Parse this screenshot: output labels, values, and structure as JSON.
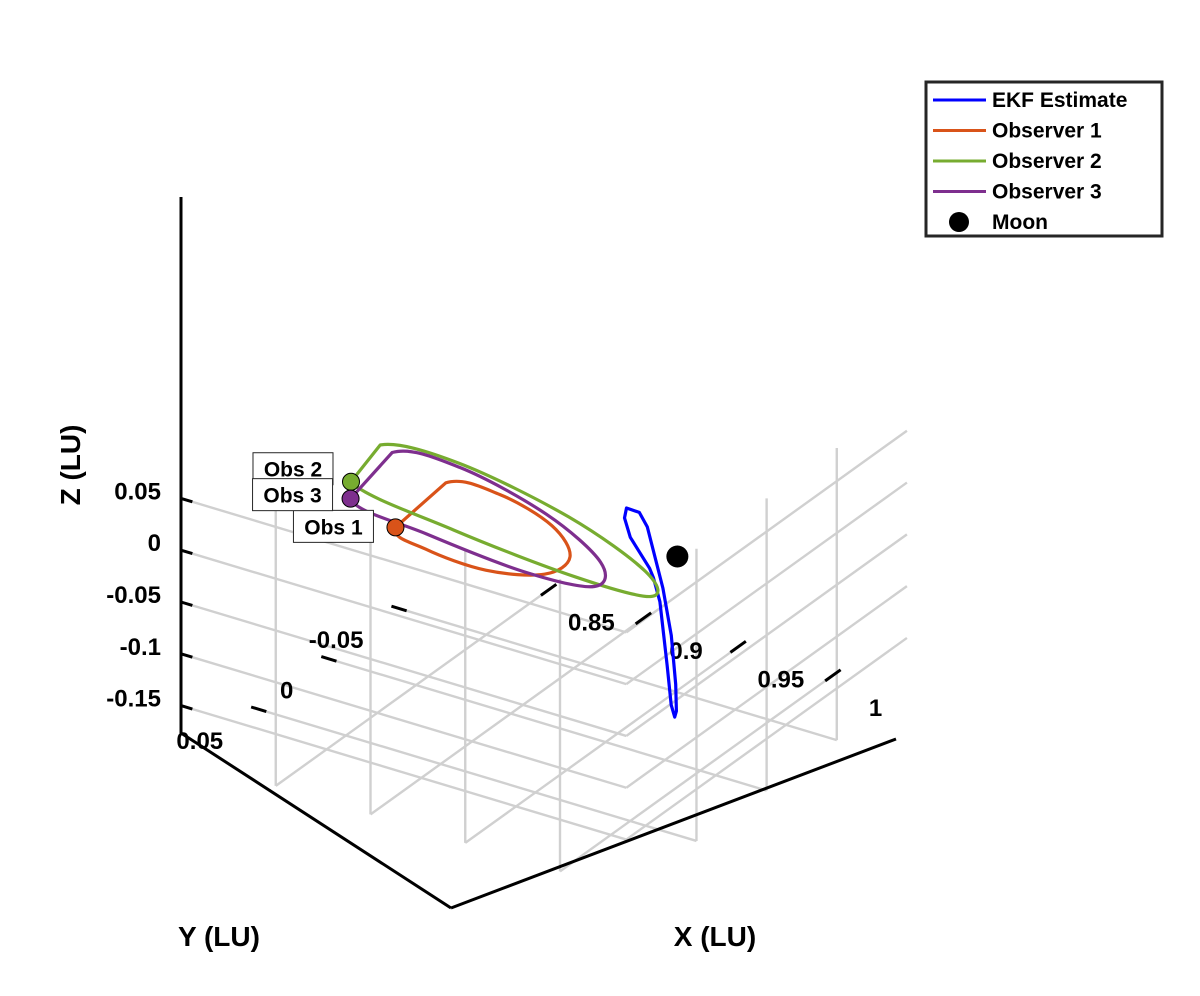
{
  "chart_data": {
    "type": "line3d",
    "grid": true,
    "legend_position": "top-right",
    "axes": {
      "x": {
        "label": "X (LU)",
        "ticks": [
          0.85,
          0.9,
          0.95,
          1
        ],
        "tick_labels": [
          "0.85",
          "0.9",
          "0.95",
          "1"
        ]
      },
      "y": {
        "label": "Y (LU)",
        "ticks": [
          0.05,
          0,
          -0.05
        ],
        "tick_labels": [
          "0.05",
          "0",
          "-0.05"
        ]
      },
      "z": {
        "label": "Z (LU)",
        "ticks": [
          0.05,
          0,
          -0.05,
          -0.1,
          -0.15
        ],
        "tick_labels": [
          "0.05",
          "0",
          "-0.05",
          "-0.1",
          "-0.15"
        ]
      }
    },
    "series": [
      {
        "name": "EKF Estimate",
        "color": "#0000ff",
        "type": "trajectory",
        "x": [
          0.9757,
          0.9788,
          0.9818,
          0.985,
          0.9865,
          0.987,
          0.9865,
          0.985,
          0.9818,
          0.9762,
          0.9653,
          0.9616,
          0.9573,
          0.9588,
          0.9635,
          0.9757
        ],
        "y": [
          0.0033,
          0.0048,
          0.0042,
          0.0034,
          0.0025,
          0.0007,
          -0.0012,
          -0.0027,
          -0.0039,
          -0.0055,
          -0.0091,
          -0.0084,
          -0.0051,
          -0.0016,
          0.0006,
          0.0033
        ],
        "z": [
          -0.0149,
          -0.0208,
          -0.0429,
          -0.103,
          -0.1416,
          -0.1548,
          -0.1512,
          -0.1276,
          -0.0834,
          -0.0423,
          0.0073,
          0.0199,
          0.025,
          0.0197,
          0.0057,
          -0.0149
        ]
      },
      {
        "name": "Observer 1",
        "color": "#d95319",
        "type": "ellipse",
        "x": [
          0.8643,
          0.8776,
          0.8986,
          0.9158,
          0.9182,
          0.9047,
          0.882,
          0.8641,
          0.8643
        ],
        "y": [
          0.034,
          0.0305,
          0.0159,
          -0.0026,
          -0.0176,
          -0.0229,
          -0.0164,
          -0.0021,
          0.034
        ],
        "z": [
          -0.0068,
          -0.0239,
          -0.0469,
          -0.0593,
          -0.0559,
          -0.0382,
          -0.0144,
          0.0009,
          -0.0068
        ]
      },
      {
        "name": "Observer 2",
        "color": "#77ac30",
        "type": "ellipse",
        "x": [
          0.8575,
          0.9022,
          0.9434,
          0.9582,
          0.9381,
          0.895,
          0.8508,
          0.8347,
          0.8575
        ],
        "y": [
          0.0565,
          0.0436,
          0.0128,
          -0.0212,
          -0.0445,
          -0.048,
          -0.0293,
          0.0049,
          0.0565
        ],
        "z": [
          0.0554,
          0.0208,
          -0.0316,
          -0.0756,
          -0.0851,
          -0.0596,
          -0.0138,
          0.0281,
          0.0554
        ]
      },
      {
        "name": "Observer 3",
        "color": "#7e2f8e",
        "type": "ellipse",
        "x": [
          0.8529,
          0.8857,
          0.92,
          0.9349,
          0.9225,
          0.89,
          0.8543,
          0.8392,
          0.8529
        ],
        "y": [
          0.0506,
          0.0409,
          0.0162,
          -0.0124,
          -0.0336,
          -0.0388,
          -0.0253,
          0.0024,
          0.0506
        ],
        "z": [
          0.0308,
          0.0054,
          -0.0369,
          -0.0702,
          -0.0742,
          -0.0508,
          -0.0121,
          0.0209,
          0.0308
        ]
      }
    ],
    "moon": {
      "name": "Moon",
      "color": "#000000",
      "x": 0.9879,
      "y": 0.0,
      "z": 0.0
    },
    "observer_markers": [
      {
        "label": "Obs 1",
        "color": "#d95319",
        "x": 0.8643,
        "y": 0.034,
        "z": -0.0068
      },
      {
        "label": "Obs 2",
        "color": "#77ac30",
        "x": 0.8575,
        "y": 0.0565,
        "z": 0.0554
      },
      {
        "label": "Obs 3",
        "color": "#7e2f8e",
        "x": 0.8529,
        "y": 0.0506,
        "z": 0.0308
      }
    ],
    "legend": [
      {
        "label": "EKF Estimate",
        "kind": "line",
        "color": "#0000ff"
      },
      {
        "label": "Observer 1",
        "kind": "line",
        "color": "#d95319"
      },
      {
        "label": "Observer 2",
        "kind": "line",
        "color": "#77ac30"
      },
      {
        "label": "Observer 3",
        "kind": "line",
        "color": "#7e2f8e"
      },
      {
        "label": "Moon",
        "kind": "marker",
        "color": "#000000"
      }
    ]
  }
}
